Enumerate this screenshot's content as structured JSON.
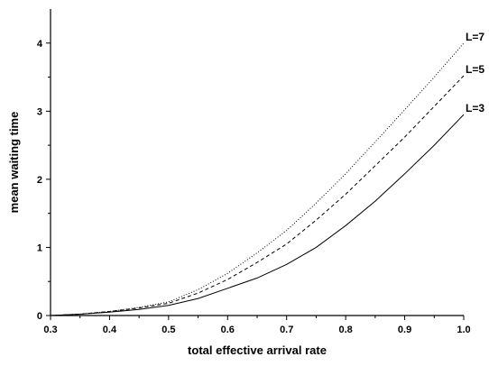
{
  "chart_data": {
    "type": "line",
    "title": "",
    "xlabel": "total effective arrival rate",
    "ylabel": "mean waiting time",
    "xlim": [
      0.3,
      1.0
    ],
    "ylim": [
      0,
      4.5
    ],
    "xticks": [
      "0.3",
      "0.4",
      "0.5",
      "0.6",
      "0.7",
      "0.8",
      "0.9",
      "1.0"
    ],
    "yticks": [
      "0",
      "1",
      "2",
      "3",
      "4"
    ],
    "grid": false,
    "legend": "none",
    "series": [
      {
        "name": "L=3",
        "style": "solid",
        "x": [
          0.3,
          0.35,
          0.4,
          0.45,
          0.5,
          0.55,
          0.6,
          0.65,
          0.7,
          0.75,
          0.8,
          0.85,
          0.9,
          0.95,
          1.0
        ],
        "y": [
          0.0,
          0.02,
          0.05,
          0.09,
          0.15,
          0.25,
          0.4,
          0.55,
          0.75,
          1.0,
          1.32,
          1.68,
          2.08,
          2.5,
          2.95
        ]
      },
      {
        "name": "L=5",
        "style": "dashed",
        "x": [
          0.3,
          0.35,
          0.4,
          0.45,
          0.5,
          0.55,
          0.6,
          0.65,
          0.7,
          0.75,
          0.8,
          0.85,
          0.9,
          0.95,
          1.0
        ],
        "y": [
          0.0,
          0.02,
          0.06,
          0.11,
          0.18,
          0.33,
          0.53,
          0.78,
          1.05,
          1.4,
          1.78,
          2.2,
          2.62,
          3.07,
          3.52
        ]
      },
      {
        "name": "L=7",
        "style": "dotted",
        "x": [
          0.3,
          0.35,
          0.4,
          0.45,
          0.5,
          0.55,
          0.6,
          0.65,
          0.7,
          0.75,
          0.8,
          0.85,
          0.9,
          0.95,
          1.0
        ],
        "y": [
          0.0,
          0.02,
          0.06,
          0.12,
          0.2,
          0.38,
          0.62,
          0.92,
          1.25,
          1.65,
          2.08,
          2.55,
          3.02,
          3.5,
          4.0
        ]
      }
    ]
  }
}
